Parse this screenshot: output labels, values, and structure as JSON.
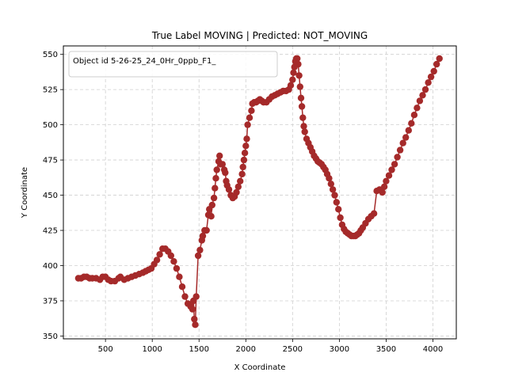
{
  "chart_data": {
    "type": "line",
    "title": "True Label MOVING | Predicted: NOT_MOVING",
    "xlabel": "X Coordinate",
    "ylabel": "Y Coordinate",
    "xlim": [
      50,
      4250
    ],
    "ylim": [
      348,
      556
    ],
    "xticks": [
      500,
      1000,
      1500,
      2000,
      2500,
      3000,
      3500,
      4000
    ],
    "yticks": [
      350,
      375,
      400,
      425,
      450,
      475,
      500,
      525,
      550
    ],
    "grid": true,
    "legend_position": "top-left",
    "line_color": "#a52a2a",
    "series": [
      {
        "name": "Object id 5-26-25_24_0Hr_0ppb_F1_",
        "marker": "circle",
        "points": [
          [
            210,
            391
          ],
          [
            240,
            391
          ],
          [
            270,
            392
          ],
          [
            300,
            392
          ],
          [
            330,
            391
          ],
          [
            360,
            391
          ],
          [
            400,
            391
          ],
          [
            440,
            390
          ],
          [
            470,
            392
          ],
          [
            500,
            392
          ],
          [
            530,
            390
          ],
          [
            560,
            389
          ],
          [
            600,
            389
          ],
          [
            640,
            391
          ],
          [
            660,
            392
          ],
          [
            700,
            390
          ],
          [
            740,
            391
          ],
          [
            780,
            392
          ],
          [
            820,
            393
          ],
          [
            860,
            394
          ],
          [
            900,
            395
          ],
          [
            930,
            396
          ],
          [
            960,
            397
          ],
          [
            990,
            398
          ],
          [
            1020,
            401
          ],
          [
            1050,
            404
          ],
          [
            1080,
            408
          ],
          [
            1110,
            412
          ],
          [
            1140,
            412
          ],
          [
            1170,
            410
          ],
          [
            1200,
            407
          ],
          [
            1230,
            403
          ],
          [
            1260,
            398
          ],
          [
            1290,
            392
          ],
          [
            1320,
            385
          ],
          [
            1350,
            378
          ],
          [
            1380,
            373
          ],
          [
            1410,
            371
          ],
          [
            1430,
            369
          ],
          [
            1440,
            375
          ],
          [
            1450,
            362
          ],
          [
            1460,
            358
          ],
          [
            1470,
            378
          ],
          [
            1490,
            407
          ],
          [
            1510,
            411
          ],
          [
            1530,
            418
          ],
          [
            1540,
            421
          ],
          [
            1560,
            425
          ],
          [
            1580,
            425
          ],
          [
            1600,
            436
          ],
          [
            1610,
            440
          ],
          [
            1630,
            435
          ],
          [
            1640,
            443
          ],
          [
            1660,
            448
          ],
          [
            1670,
            455
          ],
          [
            1680,
            462
          ],
          [
            1690,
            468
          ],
          [
            1710,
            474
          ],
          [
            1720,
            478
          ],
          [
            1730,
            472
          ],
          [
            1750,
            472
          ],
          [
            1770,
            468
          ],
          [
            1780,
            466
          ],
          [
            1790,
            460
          ],
          [
            1800,
            457
          ],
          [
            1820,
            454
          ],
          [
            1840,
            450
          ],
          [
            1860,
            448
          ],
          [
            1880,
            449
          ],
          [
            1900,
            452
          ],
          [
            1920,
            456
          ],
          [
            1940,
            460
          ],
          [
            1960,
            465
          ],
          [
            1970,
            470
          ],
          [
            1980,
            475
          ],
          [
            1990,
            480
          ],
          [
            2000,
            485
          ],
          [
            2010,
            490
          ],
          [
            2020,
            500
          ],
          [
            2040,
            505
          ],
          [
            2060,
            510
          ],
          [
            2070,
            515
          ],
          [
            2090,
            516
          ],
          [
            2110,
            516
          ],
          [
            2130,
            517
          ],
          [
            2150,
            518
          ],
          [
            2170,
            517
          ],
          [
            2190,
            516
          ],
          [
            2220,
            516
          ],
          [
            2250,
            518
          ],
          [
            2280,
            520
          ],
          [
            2310,
            521
          ],
          [
            2340,
            522
          ],
          [
            2370,
            523
          ],
          [
            2400,
            524
          ],
          [
            2430,
            524
          ],
          [
            2460,
            525
          ],
          [
            2480,
            528
          ],
          [
            2500,
            532
          ],
          [
            2510,
            537
          ],
          [
            2520,
            541
          ],
          [
            2530,
            545
          ],
          [
            2540,
            547
          ],
          [
            2550,
            547
          ],
          [
            2560,
            543
          ],
          [
            2570,
            535
          ],
          [
            2580,
            527
          ],
          [
            2590,
            519
          ],
          [
            2600,
            513
          ],
          [
            2610,
            505
          ],
          [
            2620,
            499
          ],
          [
            2630,
            495
          ],
          [
            2650,
            490
          ],
          [
            2670,
            487
          ],
          [
            2690,
            484
          ],
          [
            2710,
            481
          ],
          [
            2730,
            478
          ],
          [
            2750,
            476
          ],
          [
            2770,
            474
          ],
          [
            2790,
            473
          ],
          [
            2810,
            472
          ],
          [
            2830,
            470
          ],
          [
            2850,
            468
          ],
          [
            2870,
            465
          ],
          [
            2890,
            462
          ],
          [
            2910,
            458
          ],
          [
            2930,
            454
          ],
          [
            2950,
            450
          ],
          [
            2970,
            445
          ],
          [
            2990,
            440
          ],
          [
            3010,
            434
          ],
          [
            3030,
            429
          ],
          [
            3050,
            426
          ],
          [
            3070,
            424
          ],
          [
            3090,
            423
          ],
          [
            3110,
            422
          ],
          [
            3130,
            421
          ],
          [
            3150,
            421
          ],
          [
            3170,
            421
          ],
          [
            3190,
            422
          ],
          [
            3210,
            423
          ],
          [
            3230,
            425
          ],
          [
            3250,
            427
          ],
          [
            3280,
            430
          ],
          [
            3310,
            433
          ],
          [
            3340,
            435
          ],
          [
            3370,
            437
          ],
          [
            3400,
            453
          ],
          [
            3430,
            454
          ],
          [
            3460,
            452
          ],
          [
            3480,
            456
          ],
          [
            3500,
            460
          ],
          [
            3530,
            464
          ],
          [
            3560,
            468
          ],
          [
            3590,
            472
          ],
          [
            3620,
            477
          ],
          [
            3650,
            482
          ],
          [
            3680,
            487
          ],
          [
            3710,
            491
          ],
          [
            3740,
            496
          ],
          [
            3770,
            501
          ],
          [
            3800,
            507
          ],
          [
            3830,
            512
          ],
          [
            3860,
            517
          ],
          [
            3890,
            521
          ],
          [
            3920,
            525
          ],
          [
            3950,
            530
          ],
          [
            3980,
            534
          ],
          [
            4010,
            538
          ],
          [
            4040,
            543
          ],
          [
            4070,
            547
          ]
        ]
      }
    ]
  }
}
